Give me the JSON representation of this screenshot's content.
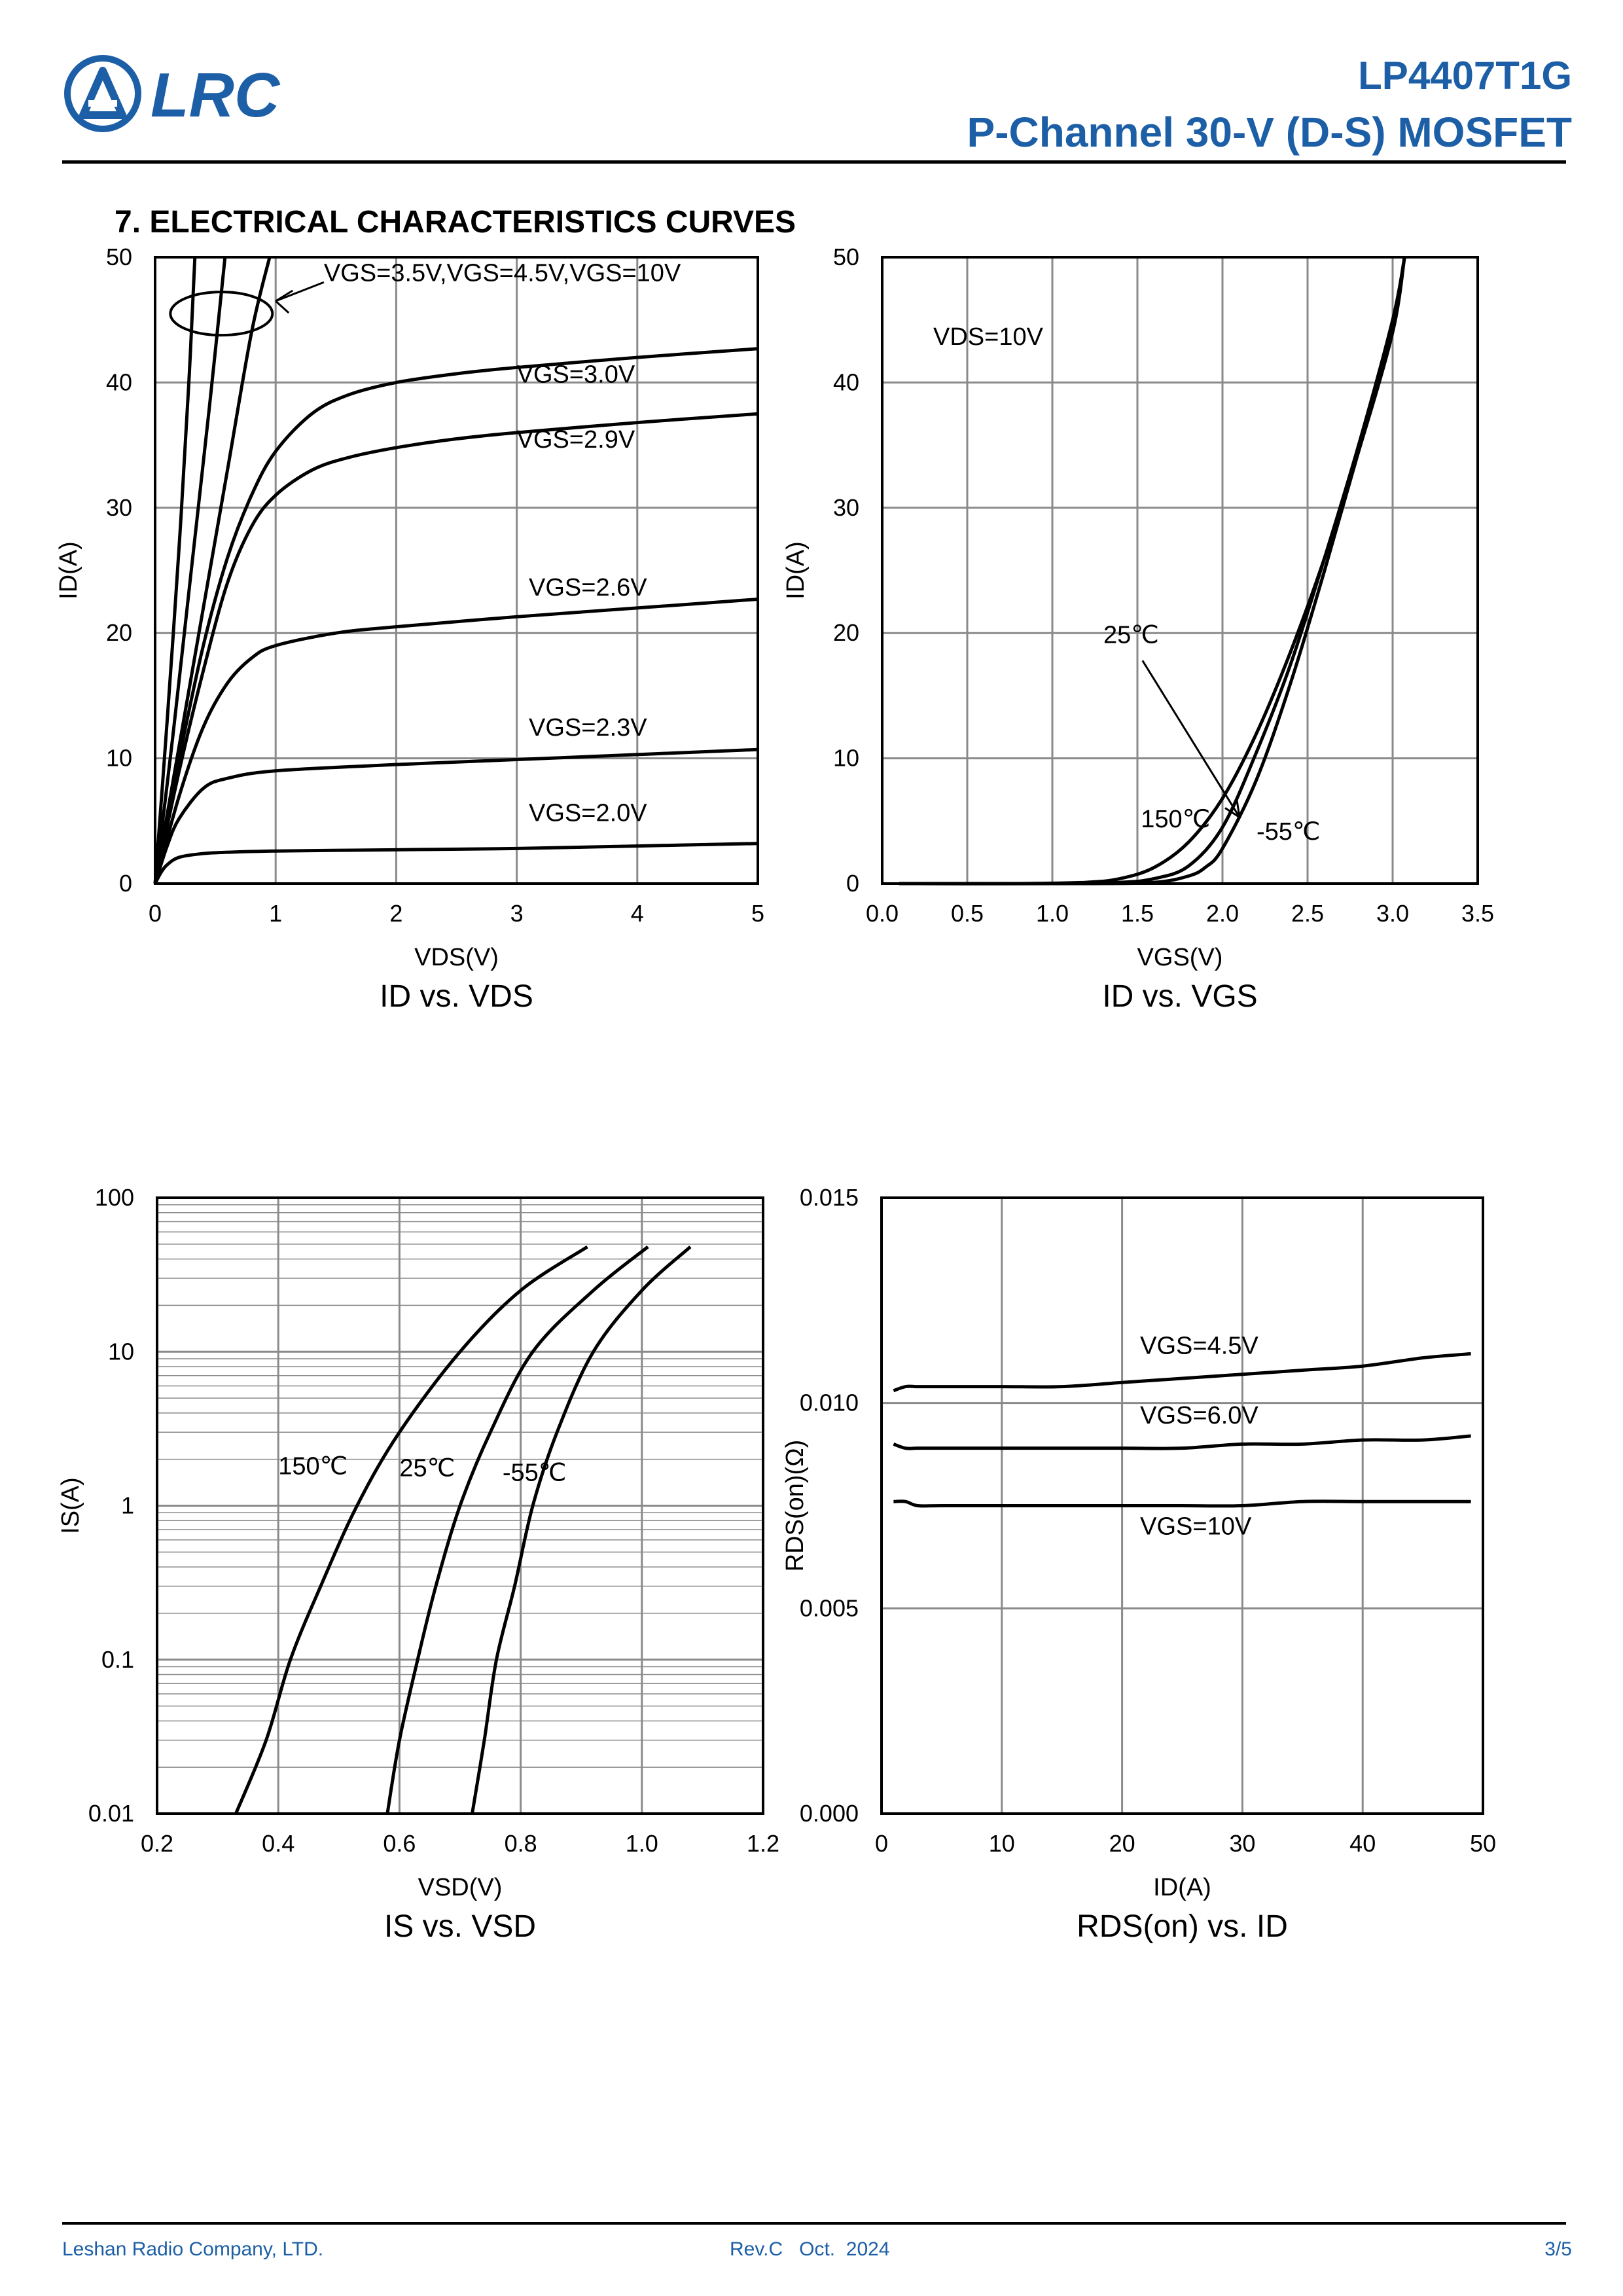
{
  "header": {
    "logo_text": "LRC",
    "part_number": "LP4407T1G",
    "description": "P-Channel 30-V (D-S) MOSFET",
    "brand_color": "#1d5fa6"
  },
  "section_title": "7. ELECTRICAL CHARACTERISTICS CURVES",
  "footer": {
    "company": "Leshan Radio Company, LTD.",
    "revision": "Rev.C   Oct.  2024",
    "page": "3/5"
  },
  "chart_data": [
    {
      "type": "line",
      "caption": "ID vs. VDS",
      "xlabel": "VDS(V)",
      "ylabel": "ID(A)",
      "xlim": [
        0,
        5
      ],
      "ylim": [
        0,
        50
      ],
      "xticks": [
        "0",
        "1",
        "2",
        "3",
        "4",
        "5"
      ],
      "yticks": [
        "0",
        "10",
        "20",
        "30",
        "40",
        "50"
      ],
      "grid": true,
      "annotation": "VGS=3.5V,VGS=4.5V,VGS=10V",
      "series": [
        {
          "name": "VGS=10V",
          "x": [
            0,
            0.1,
            0.2,
            0.28,
            0.33
          ],
          "y": [
            0,
            13,
            27,
            40,
            50
          ]
        },
        {
          "name": "VGS=4.5V",
          "x": [
            0,
            0.15,
            0.3,
            0.45,
            0.58
          ],
          "y": [
            0,
            12,
            25,
            38,
            50
          ]
        },
        {
          "name": "VGS=3.5V",
          "x": [
            0,
            0.2,
            0.4,
            0.6,
            0.8,
            0.95
          ],
          "y": [
            0,
            11,
            22,
            33,
            44,
            50
          ]
        },
        {
          "name": "VGS=3.0V",
          "x": [
            0,
            0.2,
            0.4,
            0.6,
            0.8,
            1.0,
            1.3,
            1.6,
            2.0,
            2.5,
            3.0,
            4.0,
            5.0
          ],
          "y": [
            0,
            10,
            19,
            26,
            31,
            34.5,
            37.5,
            39,
            40,
            40.7,
            41.2,
            42,
            42.7
          ]
        },
        {
          "name": "VGS=2.9V",
          "x": [
            0,
            0.2,
            0.4,
            0.6,
            0.8,
            1.0,
            1.3,
            1.6,
            2.0,
            2.5,
            3.0,
            4.0,
            5.0
          ],
          "y": [
            0,
            9,
            17,
            24,
            28.5,
            31,
            33,
            34,
            34.8,
            35.5,
            36,
            36.8,
            37.5
          ]
        },
        {
          "name": "VGS=2.6V",
          "x": [
            0,
            0.2,
            0.4,
            0.6,
            0.8,
            1.0,
            1.5,
            2.0,
            3.0,
            4.0,
            5.0
          ],
          "y": [
            0,
            7,
            12.5,
            16,
            18,
            19,
            20,
            20.5,
            21.3,
            22,
            22.7
          ]
        },
        {
          "name": "VGS=2.3V",
          "x": [
            0,
            0.1,
            0.2,
            0.4,
            0.6,
            1.0,
            2.0,
            3.0,
            4.0,
            5.0
          ],
          "y": [
            0,
            3,
            5.2,
            7.6,
            8.4,
            9,
            9.5,
            9.9,
            10.3,
            10.7
          ]
        },
        {
          "name": "VGS=2.0V",
          "x": [
            0,
            0.05,
            0.1,
            0.2,
            0.4,
            0.6,
            1.0,
            2.0,
            3.0,
            4.0,
            5.0
          ],
          "y": [
            0,
            0.9,
            1.5,
            2.1,
            2.4,
            2.5,
            2.6,
            2.7,
            2.8,
            3.0,
            3.2
          ]
        }
      ]
    },
    {
      "type": "line",
      "caption": "ID vs. VGS",
      "xlabel": "VGS(V)",
      "ylabel": "ID(A)",
      "xlim": [
        0,
        3.5
      ],
      "ylim": [
        0,
        50
      ],
      "xticks": [
        "0.0",
        "0.5",
        "1.0",
        "1.5",
        "2.0",
        "2.5",
        "3.0",
        "3.5"
      ],
      "yticks": [
        "0",
        "10",
        "20",
        "30",
        "40",
        "50"
      ],
      "grid": true,
      "annotations": [
        "VDS=10V",
        "25℃",
        "150℃",
        "-55℃"
      ],
      "series": [
        {
          "name": "150℃",
          "x": [
            0.1,
            0.8,
            1.2,
            1.4,
            1.6,
            1.8,
            2.0,
            2.2,
            2.4,
            2.6,
            2.8,
            3.0,
            3.07
          ],
          "y": [
            0,
            0,
            0.1,
            0.4,
            1.3,
            3.3,
            6.8,
            12,
            18.5,
            26,
            34.5,
            44,
            50
          ]
        },
        {
          "name": "25℃",
          "x": [
            0.1,
            1.0,
            1.4,
            1.6,
            1.8,
            2.0,
            2.2,
            2.4,
            2.6,
            2.8,
            3.0,
            3.07
          ],
          "y": [
            0,
            0,
            0.1,
            0.4,
            1.4,
            4.5,
            10.5,
            17.5,
            26,
            35,
            45,
            50
          ]
        },
        {
          "name": "-55℃",
          "x": [
            0.1,
            1.2,
            1.6,
            1.8,
            1.9,
            2.0,
            2.2,
            2.4,
            2.6,
            2.8,
            3.0,
            3.07
          ],
          "y": [
            0,
            0,
            0.1,
            0.6,
            1.3,
            2.8,
            8.3,
            16,
            25,
            34.5,
            44.5,
            50
          ]
        }
      ]
    },
    {
      "type": "line",
      "caption": "IS vs. VSD",
      "xlabel": "VSD(V)",
      "ylabel": "IS(A)",
      "xlim": [
        0.2,
        1.2
      ],
      "ylim": [
        0.01,
        100
      ],
      "yscale": "log",
      "xticks": [
        "0.2",
        "0.4",
        "0.6",
        "0.8",
        "1.0",
        "1.2"
      ],
      "yticks": [
        "0.01",
        "0.1",
        "1",
        "10",
        "100"
      ],
      "grid": true,
      "series": [
        {
          "name": "150℃",
          "x": [
            0.33,
            0.38,
            0.42,
            0.47,
            0.53,
            0.6,
            0.7,
            0.8,
            0.91
          ],
          "y": [
            0.01,
            0.03,
            0.1,
            0.3,
            1,
            3,
            10,
            25,
            48
          ]
        },
        {
          "name": "25℃",
          "x": [
            0.58,
            0.6,
            0.63,
            0.66,
            0.7,
            0.75,
            0.82,
            0.92,
            1.01
          ],
          "y": [
            0.01,
            0.03,
            0.1,
            0.3,
            1,
            3,
            10,
            25,
            48
          ]
        },
        {
          "name": "-55℃",
          "x": [
            0.72,
            0.74,
            0.76,
            0.79,
            0.82,
            0.86,
            0.92,
            1.0,
            1.08
          ],
          "y": [
            0.01,
            0.03,
            0.1,
            0.3,
            1,
            3,
            10,
            25,
            48
          ]
        }
      ]
    },
    {
      "type": "line",
      "caption": "RDS(on) vs. ID",
      "xlabel": "ID(A)",
      "ylabel": "RDS(on)(Ω)",
      "xlim": [
        0,
        50
      ],
      "ylim": [
        0.0,
        0.015
      ],
      "xticks": [
        "0",
        "10",
        "20",
        "30",
        "40",
        "50"
      ],
      "yticks": [
        "0.000",
        "0.005",
        "0.010",
        "0.015"
      ],
      "grid": true,
      "series": [
        {
          "name": "VGS=4.5V",
          "x": [
            1,
            2,
            3,
            5,
            10,
            15,
            20,
            25,
            30,
            35,
            40,
            45,
            49
          ],
          "y": [
            0.0103,
            0.0104,
            0.0104,
            0.0104,
            0.0104,
            0.0104,
            0.0105,
            0.0106,
            0.0107,
            0.0108,
            0.0109,
            0.0111,
            0.0112
          ]
        },
        {
          "name": "VGS=6.0V",
          "x": [
            1,
            2,
            3,
            5,
            10,
            15,
            20,
            25,
            30,
            35,
            40,
            45,
            49
          ],
          "y": [
            0.009,
            0.0089,
            0.0089,
            0.0089,
            0.0089,
            0.0089,
            0.0089,
            0.0089,
            0.009,
            0.009,
            0.0091,
            0.0091,
            0.0092
          ]
        },
        {
          "name": "VGS=10V",
          "x": [
            1,
            2,
            3,
            5,
            10,
            15,
            20,
            25,
            30,
            35,
            40,
            45,
            49
          ],
          "y": [
            0.0076,
            0.0076,
            0.0075,
            0.0075,
            0.0075,
            0.0075,
            0.0075,
            0.0075,
            0.0075,
            0.0076,
            0.0076,
            0.0076,
            0.0076
          ]
        }
      ]
    }
  ]
}
